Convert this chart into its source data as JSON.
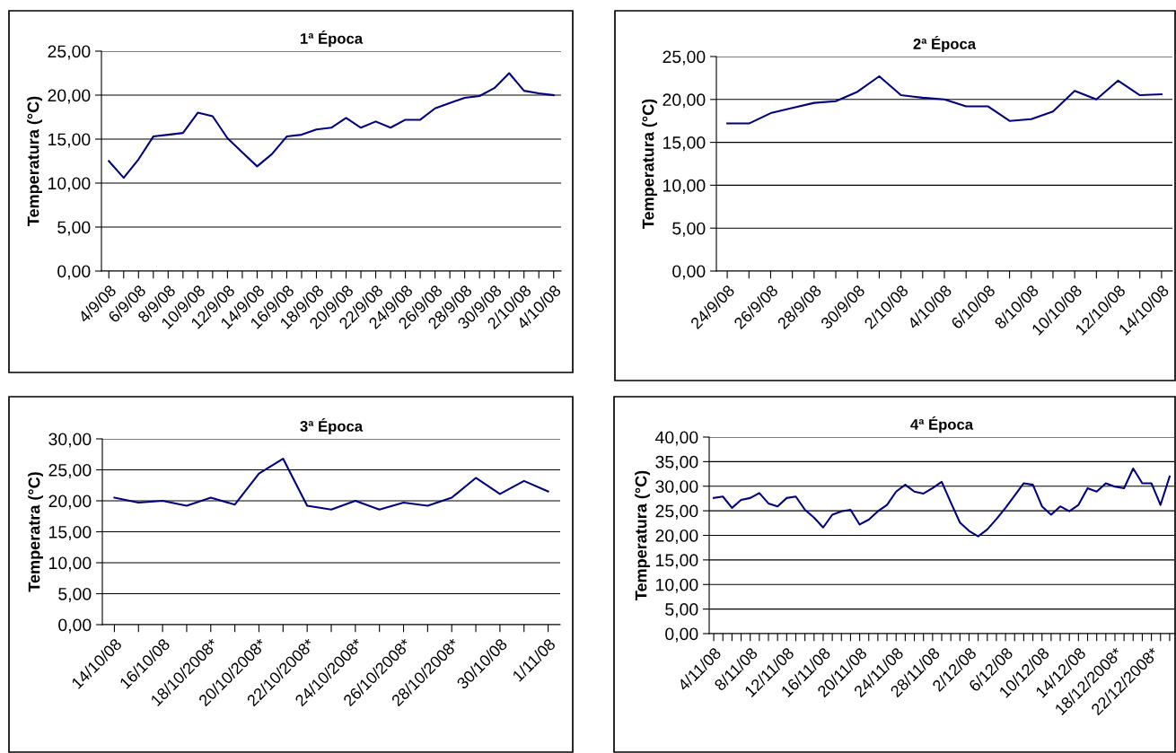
{
  "chart_data": [
    {
      "type": "line",
      "title": "1ª Época",
      "ylabel": "Temperatura (°C)",
      "grid": "y",
      "categories": [
        "4/9/08",
        null,
        "6/9/08",
        null,
        "8/9/08",
        null,
        "10/9/08",
        null,
        "12/9/08",
        null,
        "14/9/08",
        null,
        "16/9/08",
        null,
        "18/9/08",
        null,
        "20/9/08",
        null,
        "22/9/08",
        null,
        "24/9/08",
        null,
        "26/9/08",
        null,
        "28/9/08",
        null,
        "30/9/08",
        null,
        "2/10/08",
        null,
        "4/10/08"
      ],
      "series": [
        {
          "color": "#000080",
          "values": [
            12.5,
            10.6,
            12.7,
            15.3,
            15.5,
            15.7,
            18.0,
            17.6,
            15.1,
            13.5,
            11.9,
            13.3,
            15.3,
            15.5,
            16.1,
            16.3,
            17.4,
            16.3,
            17.0,
            16.3,
            17.2,
            17.2,
            18.5,
            19.1,
            19.7,
            19.9,
            20.8,
            22.5,
            20.5,
            20.2,
            20.0
          ]
        }
      ],
      "ylim": [
        0,
        25
      ],
      "yticks": [
        {
          "value": 0,
          "label": "0,00"
        },
        {
          "value": 5,
          "label": "5,00"
        },
        {
          "value": 10,
          "label": "10,00"
        },
        {
          "value": 15,
          "label": "15,00"
        },
        {
          "value": 20,
          "label": "20,00"
        },
        {
          "value": 25,
          "label": "25,00"
        }
      ]
    },
    {
      "type": "line",
      "title": "2ª Época",
      "ylabel": "Temperatura (°C)",
      "grid": "y",
      "categories": [
        "24/9/08",
        null,
        "26/9/08",
        null,
        "28/9/08",
        null,
        "30/9/08",
        null,
        "2/10/08",
        null,
        "4/10/08",
        null,
        "6/10/08",
        null,
        "8/10/08",
        null,
        "10/10/08",
        null,
        "12/10/08",
        null,
        "14/10/08"
      ],
      "series": [
        {
          "color": "#000080",
          "values": [
            17.2,
            17.2,
            18.4,
            19.0,
            19.6,
            19.8,
            20.9,
            22.7,
            20.5,
            20.2,
            20.0,
            19.2,
            19.2,
            17.5,
            17.7,
            18.6,
            21.0,
            20.0,
            22.2,
            20.5,
            20.6
          ]
        }
      ],
      "ylim": [
        0,
        25
      ],
      "yticks": [
        {
          "value": 0,
          "label": "0,00"
        },
        {
          "value": 5,
          "label": "5,00"
        },
        {
          "value": 10,
          "label": "10,00"
        },
        {
          "value": 15,
          "label": "15,00"
        },
        {
          "value": 20,
          "label": "20,00"
        },
        {
          "value": 25,
          "label": "25,00"
        }
      ]
    },
    {
      "type": "line",
      "title": "3ª Época",
      "ylabel": "Temperatra (°C)",
      "grid": "y",
      "categories": [
        "14/10/08",
        null,
        "16/10/08",
        null,
        "18/10/2008*",
        null,
        "20/10/2008*",
        null,
        "22/10/2008*",
        null,
        "24/10/2008*",
        null,
        "26/10/2008*",
        null,
        "28/10/2008*",
        null,
        "30/10/08",
        null,
        "1/11/08"
      ],
      "series": [
        {
          "color": "#000080",
          "values": [
            20.5,
            19.7,
            20.0,
            19.2,
            20.5,
            19.4,
            24.4,
            26.8,
            19.2,
            18.6,
            20.0,
            18.6,
            19.7,
            19.2,
            20.5,
            23.7,
            21.1,
            23.2,
            21.5
          ]
        }
      ],
      "ylim": [
        0,
        30
      ],
      "yticks": [
        {
          "value": 0,
          "label": "0,00"
        },
        {
          "value": 5,
          "label": "5,00"
        },
        {
          "value": 10,
          "label": "10,00"
        },
        {
          "value": 15,
          "label": "15,00"
        },
        {
          "value": 20,
          "label": "20,00"
        },
        {
          "value": 25,
          "label": "25,00"
        },
        {
          "value": 30,
          "label": "30,00"
        }
      ]
    },
    {
      "type": "line",
      "title": "4ª Época",
      "ylabel": "Temperatura (°C)",
      "grid": "y",
      "categories": [
        "4/11/08",
        null,
        null,
        null,
        "8/11/08",
        null,
        null,
        null,
        "12/11/08",
        null,
        null,
        null,
        "16/11/08",
        null,
        null,
        null,
        "20/11/08",
        null,
        null,
        null,
        "24/11/08",
        null,
        null,
        null,
        "28/11/08",
        null,
        null,
        null,
        "2/12/08",
        null,
        null,
        null,
        "6/12/08",
        null,
        null,
        null,
        "10/12/08",
        null,
        null,
        null,
        "14/12/08",
        null,
        null,
        null,
        "18/12/2008*",
        null,
        null,
        null,
        "22/12/2008*",
        null,
        null
      ],
      "series": [
        {
          "color": "#000080",
          "values": [
            27.6,
            27.9,
            25.6,
            27.2,
            27.6,
            28.6,
            26.5,
            25.9,
            27.6,
            27.9,
            25.2,
            23.6,
            21.6,
            24.2,
            24.9,
            25.2,
            22.2,
            23.2,
            24.9,
            26.2,
            28.9,
            30.3,
            28.9,
            28.5,
            29.6,
            30.9,
            26.7,
            22.6,
            20.9,
            19.8,
            21.2,
            23.3,
            25.6,
            28.1,
            30.6,
            30.3,
            25.9,
            24.2,
            25.9,
            24.9,
            26.2,
            29.6,
            28.9,
            30.6,
            29.9,
            29.6,
            33.6,
            30.6,
            30.6,
            26.2,
            32.0
          ]
        }
      ],
      "ylim": [
        0,
        40
      ],
      "yticks": [
        {
          "value": 0,
          "label": "0,00"
        },
        {
          "value": 5,
          "label": "5,00"
        },
        {
          "value": 10,
          "label": "10,00"
        },
        {
          "value": 15,
          "label": "15,00"
        },
        {
          "value": 20,
          "label": "20,00"
        },
        {
          "value": 25,
          "label": "25,00"
        },
        {
          "value": 30,
          "label": "30,00"
        },
        {
          "value": 35,
          "label": "35,00"
        },
        {
          "value": 40,
          "label": "40,00"
        }
      ]
    }
  ]
}
